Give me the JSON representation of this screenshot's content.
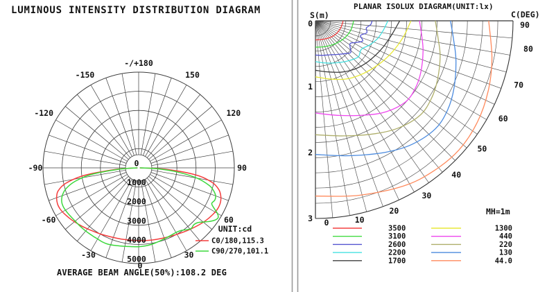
{
  "chart_data": [
    {
      "type": "line",
      "subtype": "polar-intensity",
      "title": "LUMINOUS INTENSITY DISTRIBUTION DIAGRAM",
      "footer": "AVERAGE BEAM ANGLE(50%):108.2 DEG",
      "unit_label": "UNIT:cd",
      "r_axis": {
        "min": 0,
        "max": 5000,
        "ring_step": 1000
      },
      "radial_labels": [
        "0",
        "1000",
        "2000",
        "3000",
        "4000",
        "5000"
      ],
      "angle_labels": [
        {
          "angle": 180,
          "text": "-/+180"
        },
        {
          "angle": 150,
          "text": "150"
        },
        {
          "angle": 120,
          "text": "120"
        },
        {
          "angle": 90,
          "text": "90"
        },
        {
          "angle": 60,
          "text": "60"
        },
        {
          "angle": 30,
          "text": "30"
        },
        {
          "angle": 0,
          "text": "0"
        },
        {
          "angle": -30,
          "text": "-30"
        },
        {
          "angle": -60,
          "text": "-60"
        },
        {
          "angle": -90,
          "text": "-90"
        },
        {
          "angle": -120,
          "text": "-120"
        },
        {
          "angle": -150,
          "text": "-150"
        }
      ],
      "series": [
        {
          "name": "C0/180,115.3",
          "color": "#f43c3c",
          "points": [
            [
              -90,
              60
            ],
            [
              -86,
              1200
            ],
            [
              -82,
              2900
            ],
            [
              -78,
              3900
            ],
            [
              -74,
              4380
            ],
            [
              -70,
              4560
            ],
            [
              -66,
              4640
            ],
            [
              -62,
              4630
            ],
            [
              -58,
              4560
            ],
            [
              -52,
              4430
            ],
            [
              -45,
              4270
            ],
            [
              -38,
              4120
            ],
            [
              -30,
              3990
            ],
            [
              -22,
              3890
            ],
            [
              -14,
              3830
            ],
            [
              -7,
              3800
            ],
            [
              0,
              3800
            ],
            [
              7,
              3820
            ],
            [
              14,
              3850
            ],
            [
              22,
              3910
            ],
            [
              30,
              4010
            ],
            [
              38,
              4150
            ],
            [
              45,
              4300
            ],
            [
              52,
              4460
            ],
            [
              58,
              4580
            ],
            [
              63,
              4650
            ],
            [
              67,
              4640
            ],
            [
              71,
              4540
            ],
            [
              75,
              4330
            ],
            [
              79,
              3880
            ],
            [
              83,
              3000
            ],
            [
              87,
              1400
            ],
            [
              90,
              60
            ]
          ]
        },
        {
          "name": "C90/270,101.1",
          "color": "#3cd83c",
          "points": [
            [
              -90,
              60
            ],
            [
              -86,
              1000
            ],
            [
              -82,
              2500
            ],
            [
              -78,
              3400
            ],
            [
              -74,
              3950
            ],
            [
              -70,
              4250
            ],
            [
              -66,
              4400
            ],
            [
              -62,
              4430
            ],
            [
              -58,
              4400
            ],
            [
              -54,
              4360
            ],
            [
              -50,
              4330
            ],
            [
              -46,
              4320
            ],
            [
              -42,
              4310
            ],
            [
              -38,
              4300
            ],
            [
              -34,
              4290
            ],
            [
              -30,
              4290
            ],
            [
              -26,
              4310
            ],
            [
              -22,
              4300
            ],
            [
              -18,
              4250
            ],
            [
              -14,
              4200
            ],
            [
              -10,
              4160
            ],
            [
              -5,
              4130
            ],
            [
              0,
              4120
            ],
            [
              5,
              4090
            ],
            [
              10,
              4050
            ],
            [
              15,
              3990
            ],
            [
              20,
              3940
            ],
            [
              25,
              3910
            ],
            [
              30,
              3900
            ],
            [
              34,
              3950
            ],
            [
              38,
              4100
            ],
            [
              41,
              4190
            ],
            [
              44,
              4140
            ],
            [
              47,
              4200
            ],
            [
              50,
              4400
            ],
            [
              53,
              4650
            ],
            [
              56,
              4850
            ],
            [
              58,
              4900
            ],
            [
              60,
              4750
            ],
            [
              62,
              4450
            ],
            [
              64,
              4250
            ],
            [
              67,
              4320
            ],
            [
              70,
              4280
            ],
            [
              73,
              4100
            ],
            [
              76,
              3800
            ],
            [
              80,
              3100
            ],
            [
              84,
              2000
            ],
            [
              87,
              1000
            ],
            [
              90,
              60
            ]
          ]
        }
      ]
    },
    {
      "type": "line",
      "subtype": "isolux-contours",
      "title": "PLANAR ISOLUX DIAGRAM(UNIT:lx)",
      "s_axis_label": "S(m)",
      "c_axis_label": "C(DEG)",
      "mh_label": "MH=1m",
      "s_axis": {
        "min": 0,
        "max": 3,
        "unit": "m"
      },
      "c_axis": {
        "min": 0,
        "max": 90,
        "unit": "deg",
        "label_step": 10,
        "grid_step": 5
      },
      "s_tick_labels": [
        "0",
        "1",
        "2",
        "3"
      ],
      "angle_tick_labels": [
        {
          "angle": 0,
          "text": "0"
        },
        {
          "angle": 10,
          "text": "10"
        },
        {
          "angle": 20,
          "text": "20"
        },
        {
          "angle": 30,
          "text": "30"
        },
        {
          "angle": 40,
          "text": "40"
        },
        {
          "angle": 50,
          "text": "50"
        },
        {
          "angle": 60,
          "text": "60"
        },
        {
          "angle": 70,
          "text": "70"
        },
        {
          "angle": 80,
          "text": "80"
        },
        {
          "angle": 90,
          "text": "90"
        }
      ],
      "contours": [
        {
          "value": "3500",
          "color": "#f44040",
          "points": [
            [
              0,
              0.29
            ],
            [
              15,
              0.295
            ],
            [
              30,
              0.315
            ],
            [
              45,
              0.345
            ],
            [
              60,
              0.375
            ],
            [
              75,
              0.4
            ],
            [
              90,
              0.42
            ]
          ]
        },
        {
          "value": "3100",
          "color": "#42dc42",
          "points": [
            [
              0,
              0.4
            ],
            [
              15,
              0.41
            ],
            [
              30,
              0.435
            ],
            [
              45,
              0.47
            ],
            [
              60,
              0.515
            ],
            [
              75,
              0.555
            ],
            [
              90,
              0.58
            ]
          ]
        },
        {
          "value": "2600",
          "color": "#5454d0",
          "points": [
            [
              0,
              0.52
            ],
            [
              12,
              0.535
            ],
            [
              24,
              0.565
            ],
            [
              34,
              0.615
            ],
            [
              42,
              0.67
            ],
            [
              48,
              0.72
            ],
            [
              52,
              0.67
            ],
            [
              57,
              0.63
            ],
            [
              62,
              0.7
            ],
            [
              67,
              0.78
            ],
            [
              72,
              0.72
            ],
            [
              77,
              0.8
            ],
            [
              82,
              0.78
            ],
            [
              86,
              0.84
            ],
            [
              90,
              0.86
            ]
          ]
        },
        {
          "value": "2200",
          "color": "#45e0e0",
          "points": [
            [
              0,
              0.62
            ],
            [
              14,
              0.66
            ],
            [
              28,
              0.72
            ],
            [
              40,
              0.79
            ],
            [
              50,
              0.85
            ],
            [
              58,
              0.82
            ],
            [
              66,
              0.9
            ],
            [
              74,
              0.98
            ],
            [
              82,
              1.04
            ],
            [
              90,
              1.1
            ]
          ]
        },
        {
          "value": "1700",
          "color": "#3e3e3e",
          "points": [
            [
              0,
              0.75
            ],
            [
              14,
              0.8
            ],
            [
              28,
              0.88
            ],
            [
              40,
              0.95
            ],
            [
              50,
              1.0
            ],
            [
              60,
              1.05
            ],
            [
              70,
              1.11
            ],
            [
              80,
              1.18
            ],
            [
              90,
              1.28
            ]
          ]
        },
        {
          "value": "1300",
          "color": "#e8e838",
          "points": [
            [
              0,
              0.85
            ],
            [
              14,
              0.91
            ],
            [
              28,
              1.0
            ],
            [
              42,
              1.08
            ],
            [
              56,
              1.17
            ],
            [
              68,
              1.26
            ],
            [
              80,
              1.36
            ],
            [
              90,
              1.45
            ]
          ]
        },
        {
          "value": "440",
          "color": "#ee46ee",
          "points": [
            [
              0,
              1.4
            ],
            [
              14,
              1.48
            ],
            [
              28,
              1.62
            ],
            [
              38,
              1.75
            ],
            [
              48,
              1.84
            ],
            [
              56,
              1.83
            ],
            [
              64,
              1.78
            ],
            [
              74,
              1.7
            ],
            [
              82,
              1.63
            ],
            [
              90,
              1.58
            ]
          ]
        },
        {
          "value": "220",
          "color": "#aeae6a",
          "points": [
            [
              0,
              1.73
            ],
            [
              14,
              1.8
            ],
            [
              28,
              1.94
            ],
            [
              38,
              2.06
            ],
            [
              48,
              2.14
            ],
            [
              56,
              2.12
            ],
            [
              64,
              2.06
            ],
            [
              74,
              1.97
            ],
            [
              82,
              1.88
            ],
            [
              90,
              1.82
            ]
          ]
        },
        {
          "value": "130",
          "color": "#4a8ade",
          "points": [
            [
              0,
              2.03
            ],
            [
              14,
              2.11
            ],
            [
              28,
              2.26
            ],
            [
              38,
              2.38
            ],
            [
              48,
              2.45
            ],
            [
              56,
              2.42
            ],
            [
              64,
              2.34
            ],
            [
              74,
              2.22
            ],
            [
              82,
              2.12
            ],
            [
              90,
              2.05
            ]
          ]
        },
        {
          "value": "44.0",
          "color": "#ff8a5c",
          "points": [
            [
              0,
              2.66
            ],
            [
              14,
              2.73
            ],
            [
              28,
              2.84
            ],
            [
              38,
              2.9
            ],
            [
              48,
              2.93
            ],
            [
              58,
              2.9
            ],
            [
              68,
              2.83
            ],
            [
              78,
              2.74
            ],
            [
              90,
              2.63
            ]
          ]
        }
      ],
      "legend_col1_indices": [
        0,
        1,
        2,
        3,
        4
      ],
      "legend_col2_indices": [
        5,
        6,
        7,
        8,
        9
      ]
    }
  ]
}
